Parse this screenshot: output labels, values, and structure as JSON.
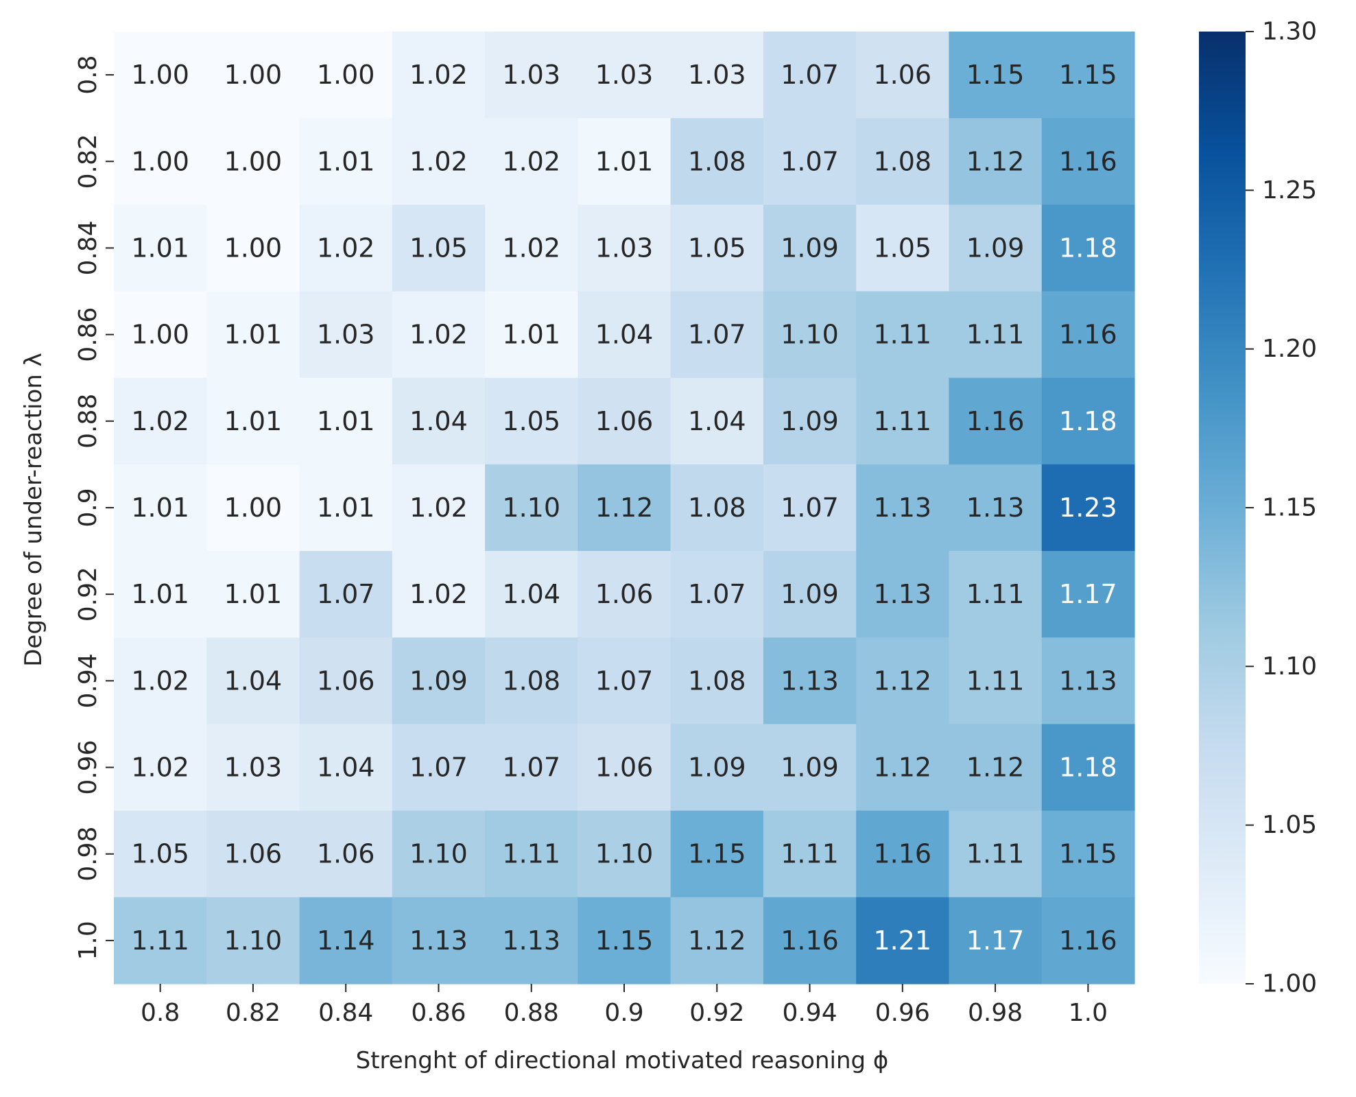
{
  "chart_data": {
    "type": "heatmap",
    "xlabel": "Strenght of directional motivated reasoning ϕ",
    "ylabel": "Degree of under-reaction λ",
    "x_categories": [
      "0.8",
      "0.82",
      "0.84",
      "0.86",
      "0.88",
      "0.9",
      "0.92",
      "0.94",
      "0.96",
      "0.98",
      "1.0"
    ],
    "y_categories": [
      "0.8",
      "0.82",
      "0.84",
      "0.86",
      "0.88",
      "0.9",
      "0.92",
      "0.94",
      "0.96",
      "0.98",
      "1.0"
    ],
    "values": [
      [
        1.0,
        1.0,
        1.0,
        1.02,
        1.03,
        1.03,
        1.03,
        1.07,
        1.06,
        1.15,
        1.15
      ],
      [
        1.0,
        1.0,
        1.01,
        1.02,
        1.02,
        1.01,
        1.08,
        1.07,
        1.08,
        1.12,
        1.16
      ],
      [
        1.01,
        1.0,
        1.02,
        1.05,
        1.02,
        1.03,
        1.05,
        1.09,
        1.05,
        1.09,
        1.18
      ],
      [
        1.0,
        1.01,
        1.03,
        1.02,
        1.01,
        1.04,
        1.07,
        1.1,
        1.11,
        1.11,
        1.16
      ],
      [
        1.02,
        1.01,
        1.01,
        1.04,
        1.05,
        1.06,
        1.04,
        1.09,
        1.11,
        1.16,
        1.18
      ],
      [
        1.01,
        1.0,
        1.01,
        1.02,
        1.1,
        1.12,
        1.08,
        1.07,
        1.13,
        1.13,
        1.23
      ],
      [
        1.01,
        1.01,
        1.07,
        1.02,
        1.04,
        1.06,
        1.07,
        1.09,
        1.13,
        1.11,
        1.17
      ],
      [
        1.02,
        1.04,
        1.06,
        1.09,
        1.08,
        1.07,
        1.08,
        1.13,
        1.12,
        1.11,
        1.13
      ],
      [
        1.02,
        1.03,
        1.04,
        1.07,
        1.07,
        1.06,
        1.09,
        1.09,
        1.12,
        1.12,
        1.18
      ],
      [
        1.05,
        1.06,
        1.06,
        1.1,
        1.11,
        1.1,
        1.15,
        1.11,
        1.16,
        1.11,
        1.15
      ],
      [
        1.11,
        1.1,
        1.14,
        1.13,
        1.13,
        1.15,
        1.12,
        1.16,
        1.21,
        1.17,
        1.16
      ]
    ],
    "colorbar": {
      "range": [
        1.0,
        1.3
      ],
      "ticks": [
        "1.00",
        "1.05",
        "1.10",
        "1.15",
        "1.20",
        "1.25",
        "1.30"
      ],
      "colormap": "Blues"
    },
    "annotation_colors": {
      "dark": "#262626",
      "light": "#ffffff"
    }
  }
}
